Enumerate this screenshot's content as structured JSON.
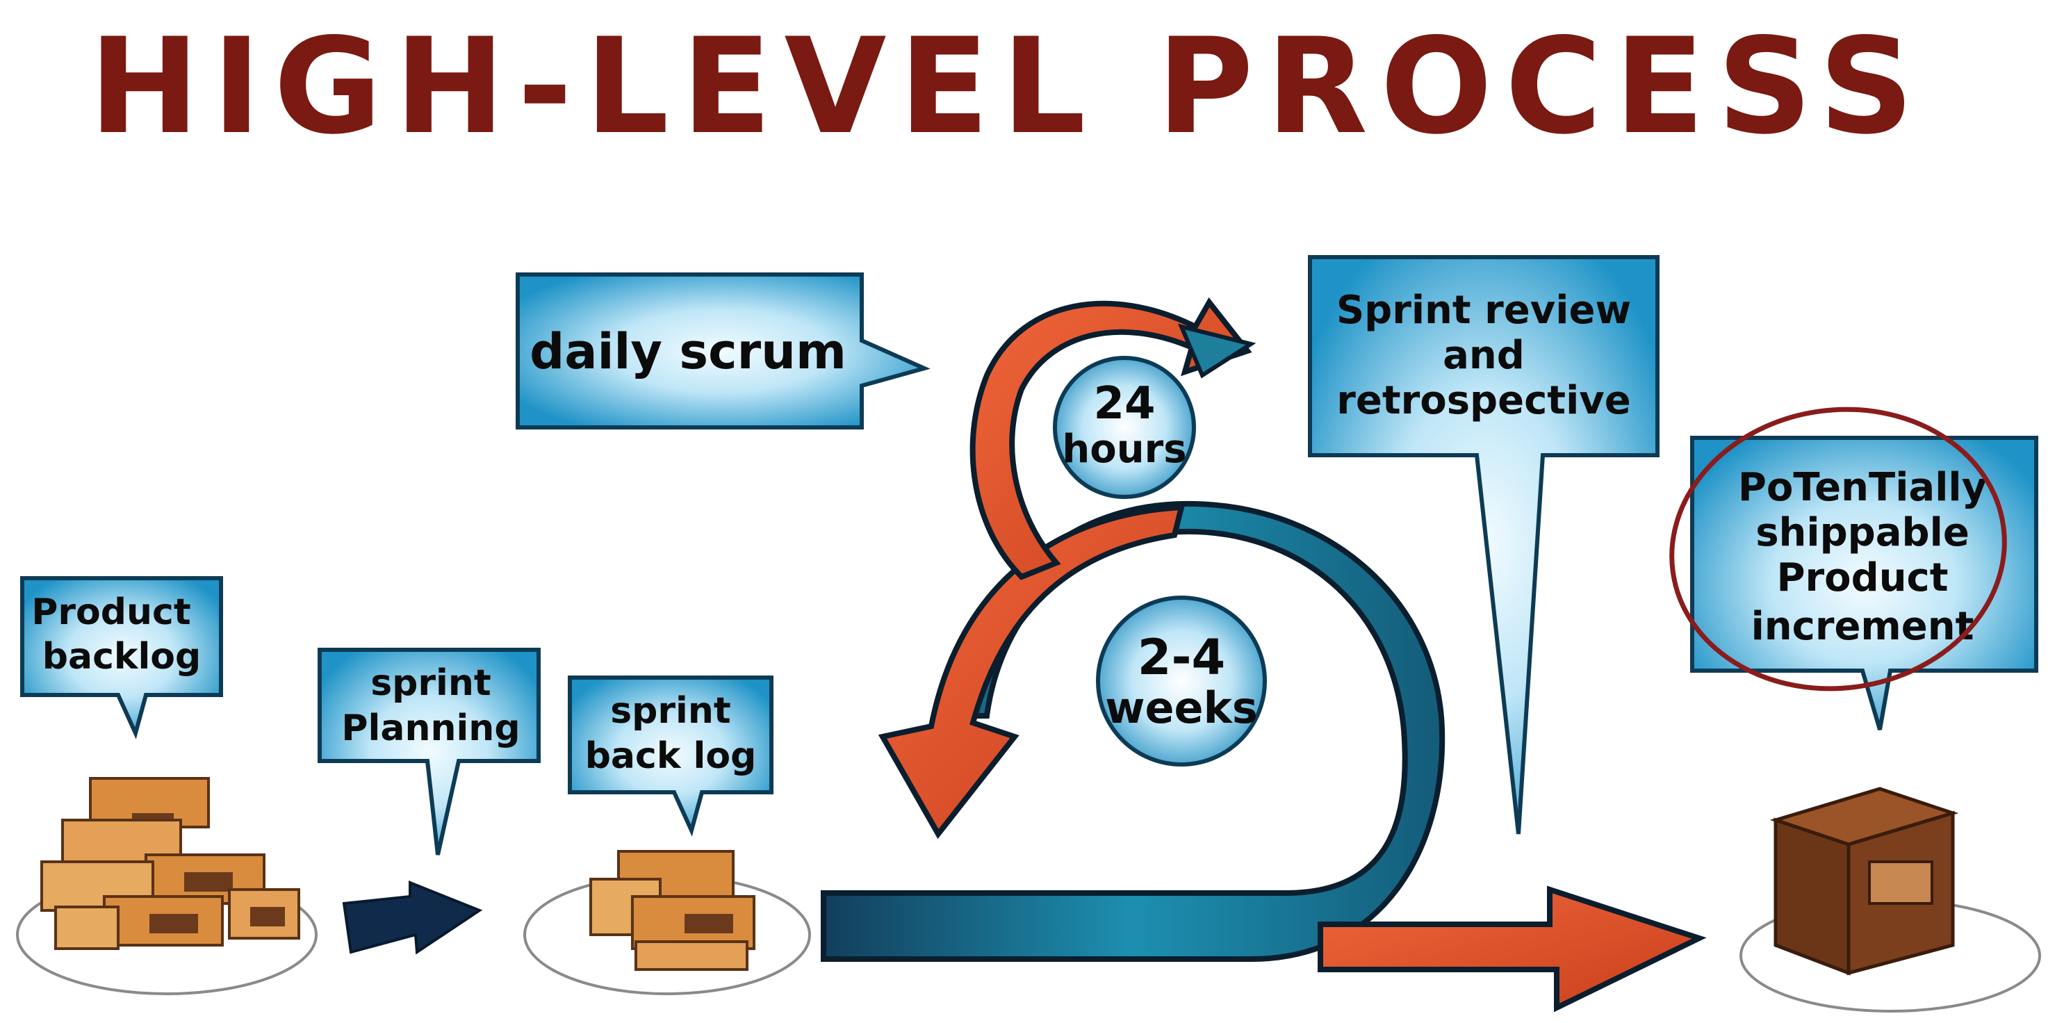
{
  "title": "HIGH-LEVEL PROCESS",
  "colors": {
    "title": "#7a1a12",
    "bubble": "#1f93c7",
    "bubble_glow": "#e9f8ff",
    "orange": "#e4542b",
    "teal": "#1d7f9c",
    "navy": "#0f2a4a",
    "box": "#d98c3e",
    "box_dark": "#6b3a1c",
    "shipped_box": "#7b3f1e",
    "circle_mark": "#8a1c1c"
  },
  "labels": {
    "product_backlog": [
      "Product",
      "backlog"
    ],
    "sprint_planning": [
      "sprint",
      "Planning"
    ],
    "sprint_backlog": [
      "sprint",
      "back log"
    ],
    "daily_scrum": [
      "daily scrum"
    ],
    "sprint_review": [
      "Sprint review",
      "and",
      "retrospective"
    ],
    "increment": [
      "PoTenTially",
      "shippable",
      "Product",
      "increment"
    ],
    "cycle_daily": [
      "24",
      "hours"
    ],
    "cycle_sprint": [
      "2-4",
      "weeks"
    ]
  },
  "icons": {
    "backlog_boxes": "stack-of-boxes-icon",
    "sprint_boxes": "small-stack-of-boxes-icon",
    "planning_arrow": "arrow-right-icon",
    "shipped_box": "closed-box-icon"
  }
}
